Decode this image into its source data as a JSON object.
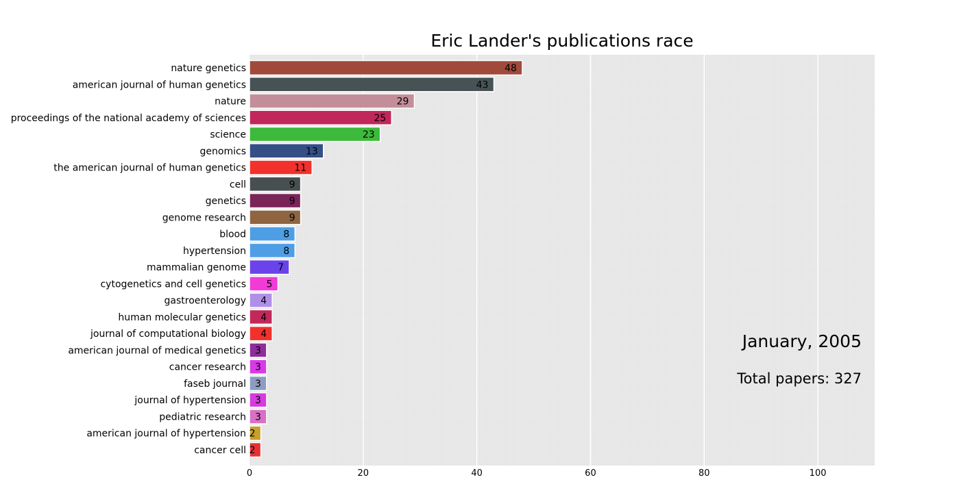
{
  "chart_data": {
    "type": "bar",
    "orientation": "horizontal",
    "title": "Eric Lander's publications race",
    "xlim": [
      0,
      110
    ],
    "x_ticks": [
      0,
      20,
      40,
      60,
      80,
      100
    ],
    "grid": true,
    "background_color": "#e8e8e8",
    "categories": [
      "nature genetics",
      "american journal of human genetics",
      "nature",
      "proceedings of the national academy of sciences",
      "science",
      "genomics",
      "the american journal of human genetics",
      "cell",
      "genetics",
      "genome research",
      "blood",
      "hypertension",
      "mammalian genome",
      "cytogenetics and cell genetics",
      "gastroenterology",
      "human molecular genetics",
      "journal of computational biology",
      "american journal of medical genetics",
      "cancer research",
      "faseb journal",
      "journal of hypertension",
      "pediatric research",
      "american journal of hypertension",
      "cancer cell"
    ],
    "values": [
      48,
      43,
      29,
      25,
      23,
      13,
      11,
      9,
      9,
      9,
      8,
      8,
      7,
      5,
      4,
      4,
      4,
      3,
      3,
      3,
      3,
      3,
      2,
      2
    ],
    "colors": [
      "#a04a3c",
      "#465254",
      "#c38e9a",
      "#c0275a",
      "#3db93c",
      "#344e86",
      "#f2302c",
      "#474f51",
      "#7b2457",
      "#8e6540",
      "#4e9ee6",
      "#4e9ee6",
      "#6a44ea",
      "#f23ad7",
      "#b08fe8",
      "#c2285a",
      "#f2302c",
      "#8d2d9a",
      "#d83ae6",
      "#8e9cc1",
      "#d63ae0",
      "#d871c4",
      "#c5a02c",
      "#e83034"
    ],
    "annotations": {
      "date": "January, 2005",
      "total": "Total papers: 327"
    }
  }
}
